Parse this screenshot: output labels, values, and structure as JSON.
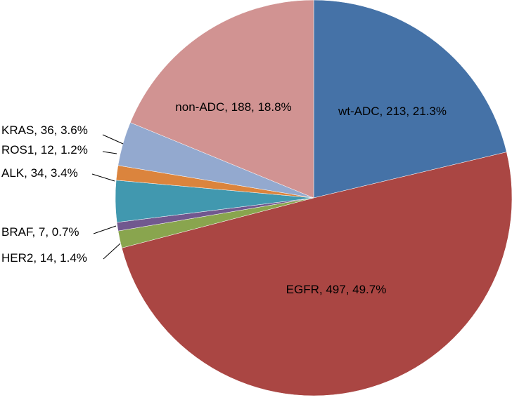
{
  "chart_data": {
    "type": "pie",
    "title": "",
    "start_angle_deg": 0,
    "direction": "clockwise",
    "slices": [
      {
        "name": "wt-ADC",
        "value": 213,
        "percent": "21.3%",
        "label": "wt-ADC, 213, 21.3%",
        "color": "#4572A7"
      },
      {
        "name": "EGFR",
        "value": 497,
        "percent": "49.7%",
        "label": "EGFR, 497, 49.7%",
        "color": "#AA4643"
      },
      {
        "name": "HER2",
        "value": 14,
        "percent": "1.4%",
        "label": "HER2, 14, 1.4%",
        "color": "#89A54E"
      },
      {
        "name": "BRAF",
        "value": 7,
        "percent": "0.7%",
        "label": "BRAF, 7, 0.7%",
        "color": "#71588F"
      },
      {
        "name": "ALK",
        "value": 34,
        "percent": "3.4%",
        "label": "ALK, 34, 3.4%",
        "color": "#4198AF"
      },
      {
        "name": "ROS1",
        "value": 12,
        "percent": "1.2%",
        "label": "ROS1, 12, 1.2%",
        "color": "#DB843D"
      },
      {
        "name": "KRAS",
        "value": 36,
        "percent": "3.6%",
        "label": "KRAS, 36, 3.6%",
        "color": "#93A9CF"
      },
      {
        "name": "non-ADC",
        "value": 188,
        "percent": "18.8%",
        "label": "non-ADC, 188, 18.8%",
        "color": "#D19392"
      }
    ]
  }
}
